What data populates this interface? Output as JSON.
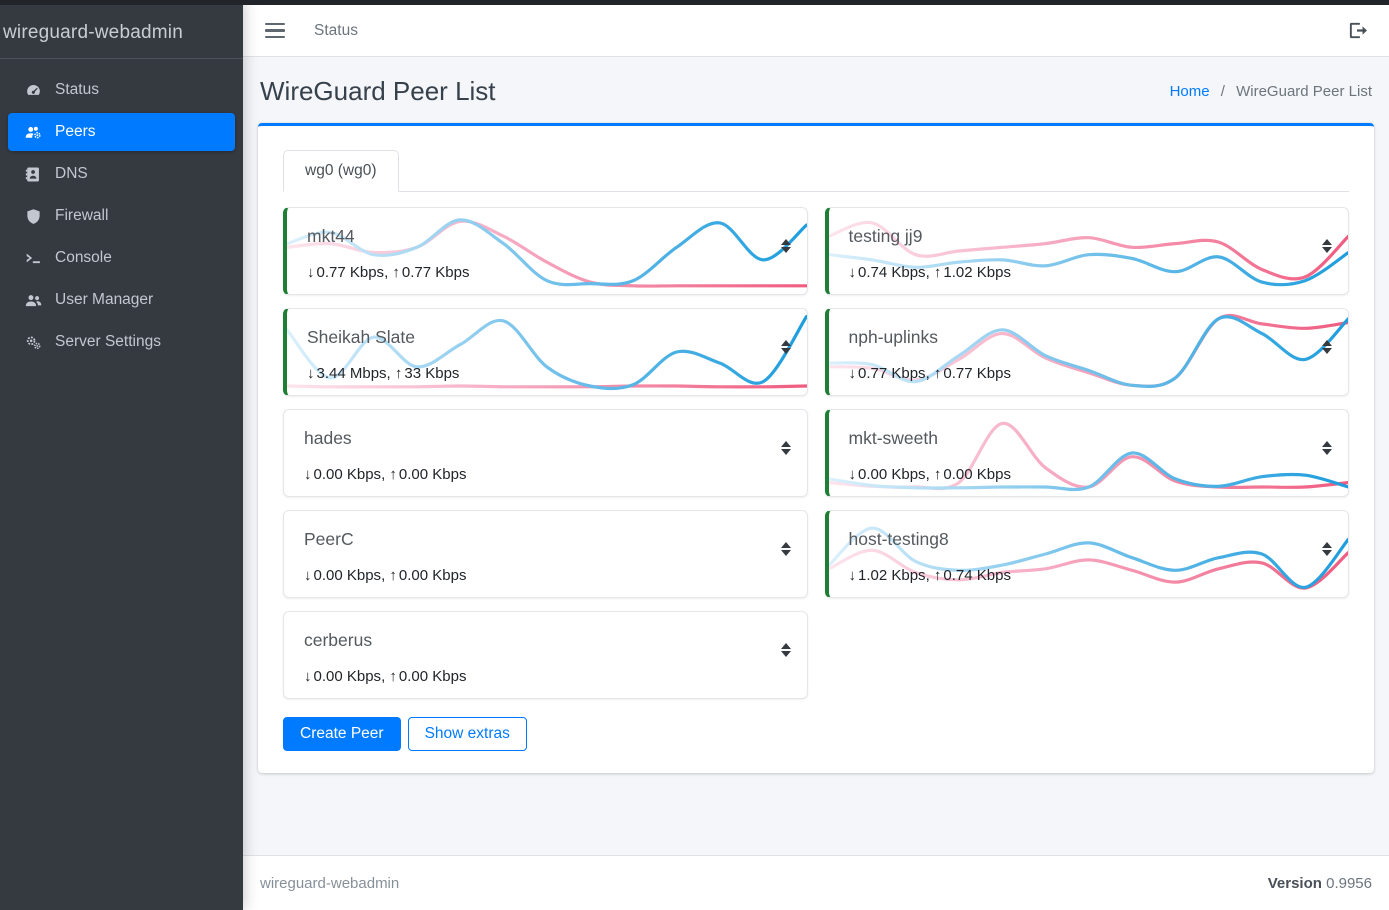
{
  "app": {
    "brand": "wireguard-webadmin",
    "footer_brand": "wireguard-webadmin",
    "version_label": "Version",
    "version": "0.9956"
  },
  "topbar": {
    "nav_link": "Status"
  },
  "sidebar": {
    "items": [
      {
        "icon": "gauge-icon",
        "label": "Status",
        "active": false
      },
      {
        "icon": "users-gear-icon",
        "label": "Peers",
        "active": true
      },
      {
        "icon": "address-book-icon",
        "label": "DNS",
        "active": false
      },
      {
        "icon": "shield-icon",
        "label": "Firewall",
        "active": false
      },
      {
        "icon": "terminal-icon",
        "label": "Console",
        "active": false
      },
      {
        "icon": "users-icon",
        "label": "User Manager",
        "active": false
      },
      {
        "icon": "gears-icon",
        "label": "Server Settings",
        "active": false
      }
    ]
  },
  "page": {
    "title": "WireGuard Peer List",
    "breadcrumb": {
      "home": "Home",
      "separator": "/",
      "current": "WireGuard Peer List"
    }
  },
  "tabs": [
    {
      "label": "wg0 (wg0)",
      "active": true
    }
  ],
  "buttons": {
    "create_peer": "Create Peer",
    "show_extras": "Show extras"
  },
  "speed_separator": ", ",
  "colors": {
    "accent": "#007bff",
    "active_peer_border": "#1e7e34",
    "download_line": "#1d9ddd",
    "download_line_light": "#dcf0fb",
    "upload_line": "#f05c80",
    "upload_line_light": "#fce4ed"
  },
  "chart_data": {
    "type": "line",
    "note": "per-peer traffic sparklines; series values normalized 0-1, download=blue, upload=pink",
    "peers_ref": "peers"
  },
  "peers": [
    {
      "name": "mkt44",
      "down": "0.77 Kbps",
      "up": "0.77 Kbps",
      "active": true,
      "column": 0,
      "download_series": [
        0.6,
        0.75,
        0.45,
        0.55,
        0.92,
        0.6,
        0.1,
        0.06,
        0.1,
        0.55,
        0.88,
        0.38,
        0.85
      ],
      "upload_series": [
        0.55,
        0.6,
        0.48,
        0.55,
        0.9,
        0.7,
        0.35,
        0.08,
        0.03,
        0.03,
        0.03,
        0.03,
        0.03
      ]
    },
    {
      "name": "Sheikah Slate",
      "down": "3.44 Mbps",
      "up": "33 Kbps",
      "active": true,
      "column": 0,
      "download_series": [
        0.8,
        0.15,
        0.7,
        0.3,
        0.6,
        0.92,
        0.3,
        0.04,
        0.06,
        0.5,
        0.35,
        0.1,
        0.98
      ],
      "upload_series": [
        0.04,
        0.03,
        0.03,
        0.03,
        0.04,
        0.03,
        0.03,
        0.03,
        0.04,
        0.04,
        0.03,
        0.03,
        0.04
      ]
    },
    {
      "name": "hades",
      "down": "0.00 Kbps",
      "up": "0.00 Kbps",
      "active": false,
      "column": 0,
      "download_series": [
        0.03,
        0.03,
        0.03,
        0.03,
        0.03,
        0.03,
        0.03,
        0.03,
        0.03,
        0.03,
        0.03,
        0.03,
        0.03
      ],
      "upload_series": [
        0.02,
        0.02,
        0.02,
        0.02,
        0.02,
        0.02,
        0.02,
        0.02,
        0.02,
        0.02,
        0.02,
        0.02,
        0.02
      ]
    },
    {
      "name": "PeerC",
      "down": "0.00 Kbps",
      "up": "0.00 Kbps",
      "active": false,
      "column": 0,
      "download_series": [
        0.03,
        0.03,
        0.03,
        0.03,
        0.03,
        0.03,
        0.03,
        0.03,
        0.03,
        0.03,
        0.03,
        0.03,
        0.03
      ],
      "upload_series": [
        0.02,
        0.02,
        0.02,
        0.02,
        0.02,
        0.02,
        0.02,
        0.02,
        0.02,
        0.02,
        0.02,
        0.02,
        0.02
      ]
    },
    {
      "name": "cerberus",
      "down": "0.00 Kbps",
      "up": "0.00 Kbps",
      "active": false,
      "column": 0,
      "download_series": [
        0.03,
        0.03,
        0.03,
        0.03,
        0.03,
        0.03,
        0.03,
        0.03,
        0.03,
        0.03,
        0.03,
        0.03,
        0.03
      ],
      "upload_series": [
        0.02,
        0.02,
        0.02,
        0.02,
        0.02,
        0.02,
        0.02,
        0.02,
        0.02,
        0.02,
        0.02,
        0.02,
        0.02
      ]
    },
    {
      "name": "testing jj9",
      "down": "0.74 Kbps",
      "up": "1.02 Kbps",
      "active": true,
      "column": 1,
      "download_series": [
        0.45,
        0.38,
        0.28,
        0.35,
        0.38,
        0.3,
        0.45,
        0.4,
        0.22,
        0.42,
        0.08,
        0.1,
        0.48
      ],
      "upload_series": [
        0.7,
        0.88,
        0.45,
        0.5,
        0.55,
        0.6,
        0.68,
        0.55,
        0.6,
        0.62,
        0.25,
        0.15,
        0.7
      ]
    },
    {
      "name": "nph-uplinks",
      "down": "0.77 Kbps",
      "up": "0.77 Kbps",
      "active": true,
      "column": 1,
      "download_series": [
        0.35,
        0.33,
        0.1,
        0.45,
        0.8,
        0.45,
        0.25,
        0.05,
        0.15,
        0.95,
        0.75,
        0.4,
        0.95
      ],
      "upload_series": [
        0.3,
        0.28,
        0.12,
        0.4,
        0.75,
        0.42,
        0.22,
        0.05,
        0.15,
        0.95,
        0.88,
        0.82,
        0.9
      ]
    },
    {
      "name": "mkt-sweeth",
      "down": "0.00 Kbps",
      "up": "0.00 Kbps",
      "active": true,
      "column": 1,
      "download_series": [
        0.15,
        0.06,
        0.03,
        0.03,
        0.04,
        0.04,
        0.04,
        0.5,
        0.15,
        0.05,
        0.18,
        0.2,
        0.04
      ],
      "upload_series": [
        0.1,
        0.05,
        0.04,
        0.1,
        0.9,
        0.3,
        0.04,
        0.45,
        0.12,
        0.04,
        0.04,
        0.04,
        0.1
      ]
    },
    {
      "name": "host-testing8",
      "down": "1.02 Kbps",
      "up": "0.74 Kbps",
      "active": true,
      "column": 1,
      "download_series": [
        0.35,
        0.85,
        0.4,
        0.28,
        0.35,
        0.5,
        0.65,
        0.45,
        0.28,
        0.45,
        0.5,
        0.05,
        0.7
      ],
      "upload_series": [
        0.3,
        0.55,
        0.25,
        0.15,
        0.25,
        0.3,
        0.42,
        0.28,
        0.12,
        0.3,
        0.38,
        0.04,
        0.52
      ]
    }
  ]
}
